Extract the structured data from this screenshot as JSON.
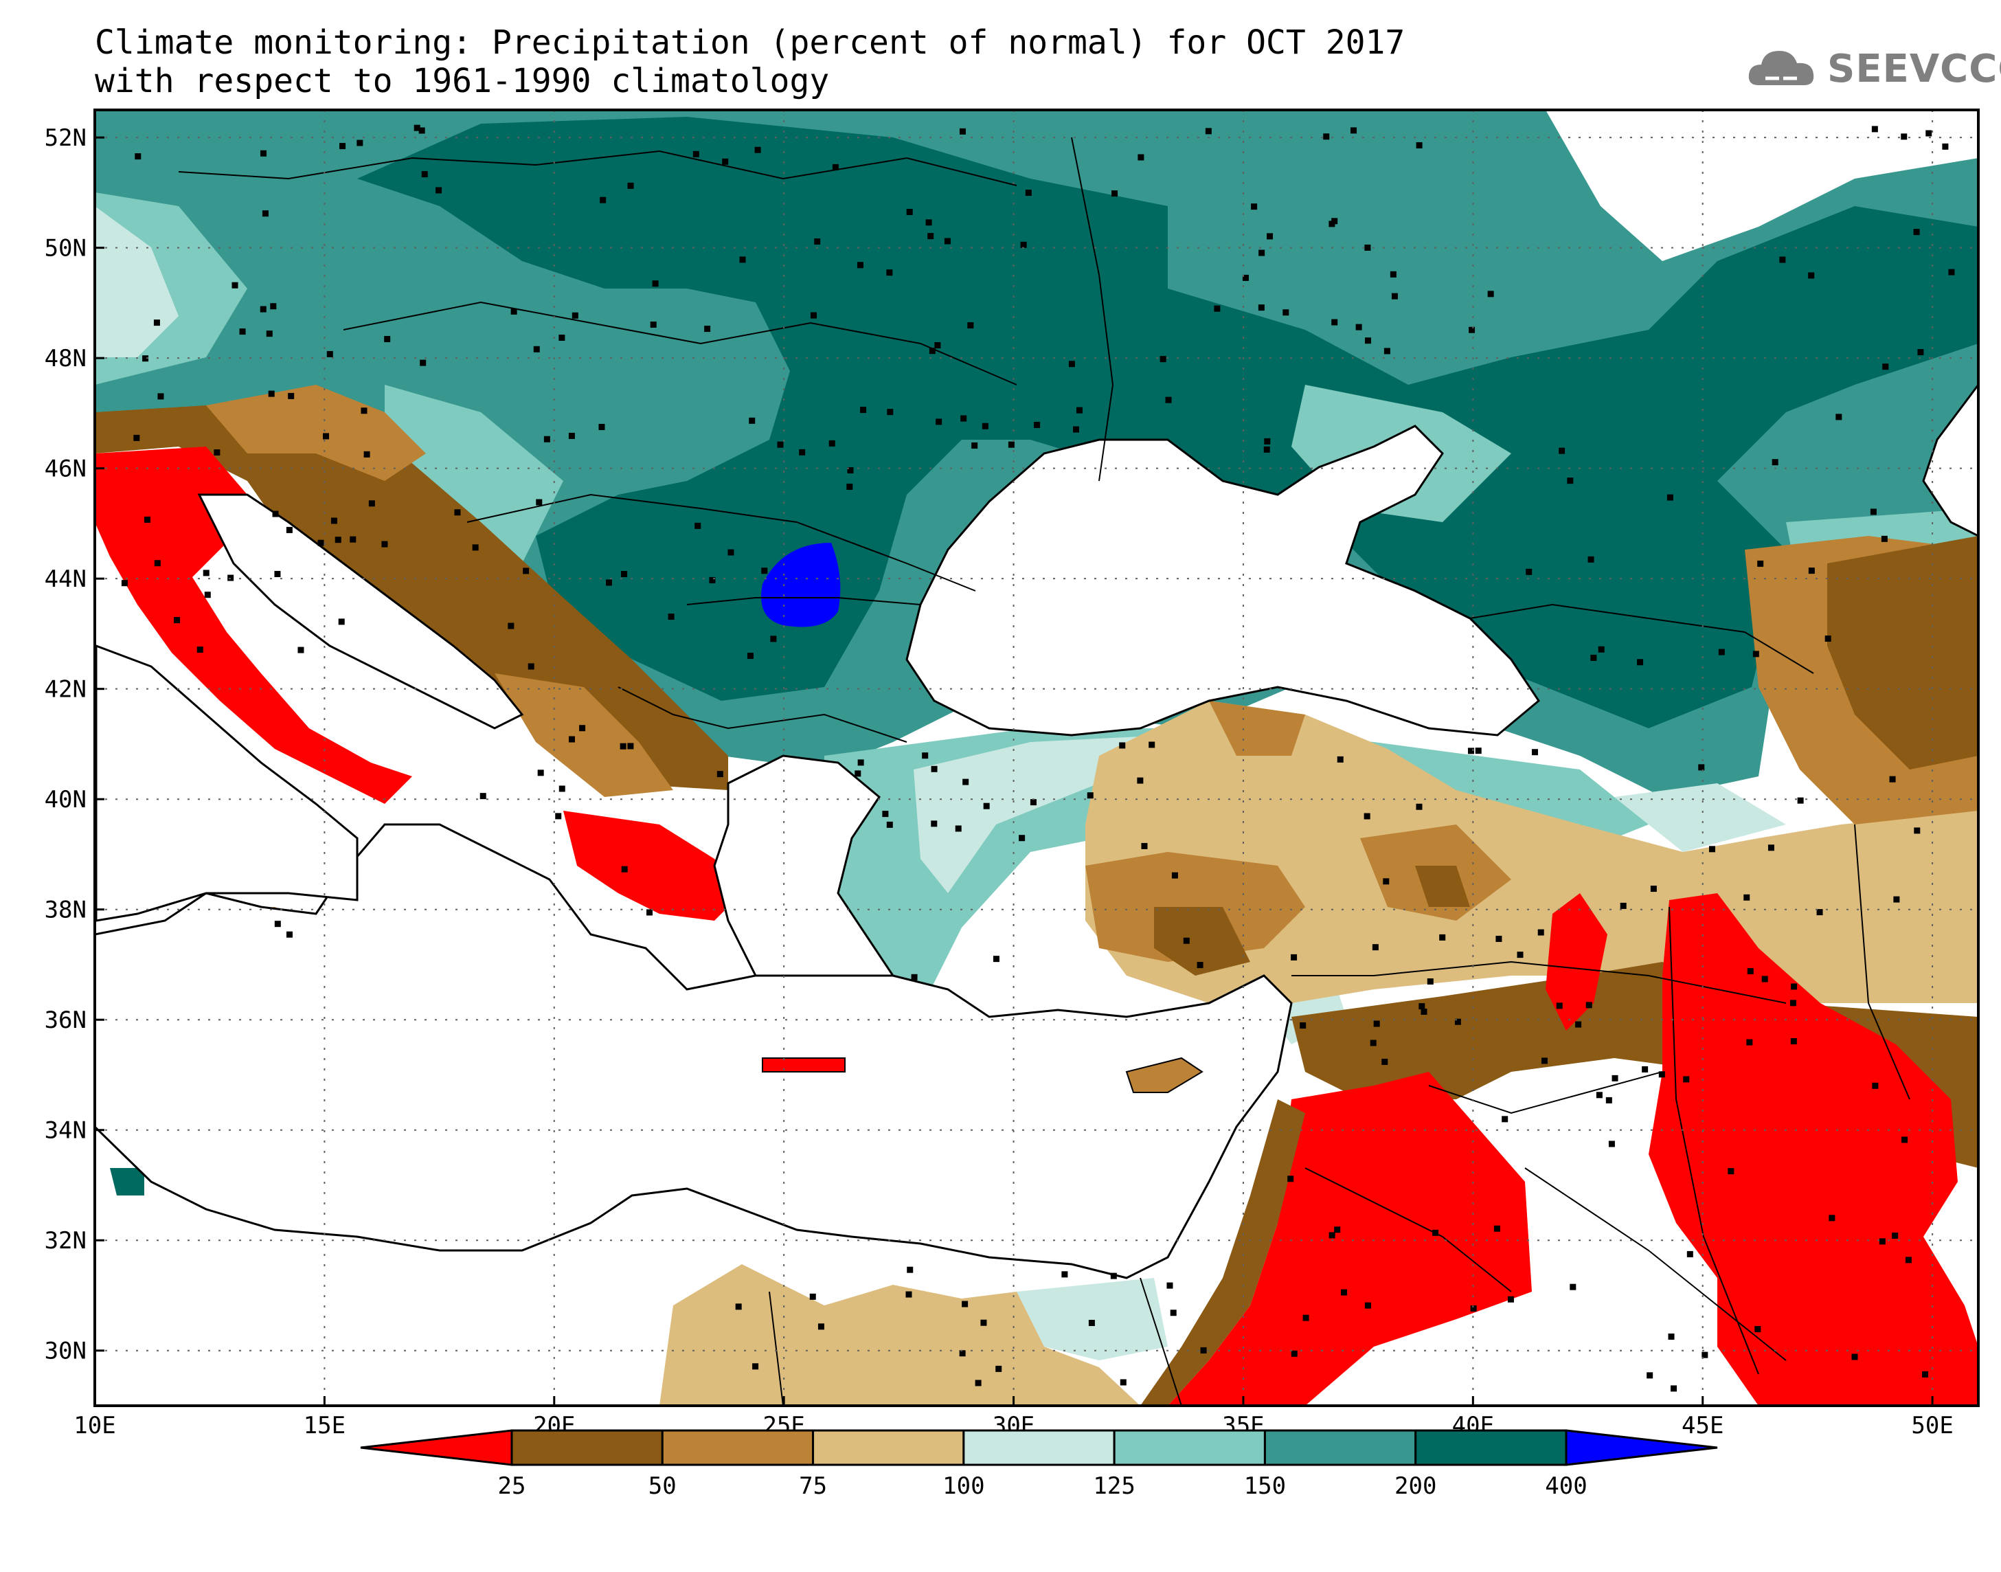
{
  "title_line1": "Climate monitoring: Precipitation (percent of normal) for OCT 2017",
  "title_line2": "with respect to 1961-1990 climatology",
  "logo_text": "SEEVCCC",
  "map": {
    "lon_range": [
      10,
      51
    ],
    "lat_range": [
      29,
      52.5
    ],
    "x_ticks": [
      "10E",
      "15E",
      "20E",
      "25E",
      "30E",
      "35E",
      "40E",
      "45E",
      "50E"
    ],
    "y_ticks": [
      "52N",
      "50N",
      "48N",
      "46N",
      "44N",
      "42N",
      "40N",
      "38N",
      "36N",
      "34N",
      "32N",
      "30N"
    ]
  },
  "colorbar": {
    "labels": [
      "25",
      "50",
      "75",
      "100",
      "125",
      "150",
      "200",
      "400"
    ],
    "colors": [
      "#ff0000",
      "#8b5a14",
      "#bc8236",
      "#dcbd7e",
      "#c9e8e2",
      "#7fcbbf",
      "#389890",
      "#006a60",
      "#0000ff"
    ]
  }
}
